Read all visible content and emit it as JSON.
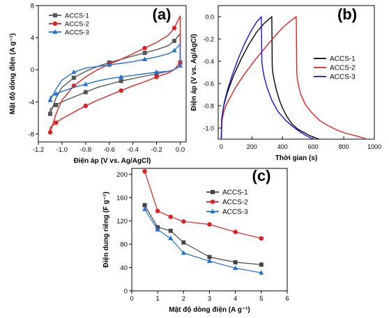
{
  "chart_data": [
    {
      "panel_label": "(a)",
      "type": "line",
      "title": "",
      "xlabel": "Điện áp (V vs. Ag/AgCl)",
      "ylabel": "Mật độ dòng điện (A g⁻¹)",
      "xlim": [
        -1.2,
        0.05
      ],
      "ylim": [
        -9,
        8
      ],
      "xticks": [
        "-1.2",
        "-1.0",
        "-0.8",
        "-0.6",
        "-0.4",
        "-0.2",
        "0.0"
      ],
      "yticks": [
        "-8",
        "-4",
        "0",
        "4",
        "8"
      ],
      "legend_position": "top-left",
      "series": [
        {
          "name": "ACCS-1",
          "color": "#555555",
          "marker": "square",
          "x": [
            -1.1,
            -1.05,
            -1.0,
            -0.9,
            -0.8,
            -0.7,
            -0.6,
            -0.5,
            -0.4,
            -0.3,
            -0.2,
            -0.1,
            -0.05,
            0.0,
            0.0,
            0.0,
            -0.05,
            -0.1,
            -0.2,
            -0.3,
            -0.4,
            -0.5,
            -0.6,
            -0.7,
            -0.8,
            -0.9,
            -1.0,
            -1.05,
            -1.1,
            -1.1
          ],
          "y": [
            -5.5,
            -3.5,
            -2.2,
            -1.0,
            -0.2,
            0.4,
            0.9,
            1.3,
            1.7,
            2.1,
            2.5,
            3.0,
            3.6,
            4.5,
            1.5,
            0.9,
            0.0,
            -0.2,
            -0.5,
            -0.8,
            -1.1,
            -1.4,
            -1.8,
            -2.2,
            -2.8,
            -3.4,
            -4.0,
            -4.4,
            -4.9,
            -5.5
          ]
        },
        {
          "name": "ACCS-2",
          "color": "#e02020",
          "marker": "circle",
          "x": [
            -1.1,
            -1.05,
            -1.0,
            -0.9,
            -0.8,
            -0.7,
            -0.6,
            -0.5,
            -0.4,
            -0.3,
            -0.2,
            -0.1,
            -0.05,
            0.0,
            0.0,
            0.0,
            -0.05,
            -0.1,
            -0.2,
            -0.3,
            -0.4,
            -0.5,
            -0.6,
            -0.7,
            -0.8,
            -0.9,
            -1.0,
            -1.05,
            -1.1,
            -1.1
          ],
          "y": [
            -7.8,
            -5.5,
            -3.8,
            -2.0,
            -0.9,
            0.0,
            0.7,
            1.3,
            2.0,
            2.7,
            3.4,
            4.3,
            5.2,
            6.7,
            1.5,
            0.9,
            0.0,
            -0.4,
            -0.9,
            -1.5,
            -2.0,
            -2.6,
            -3.2,
            -3.8,
            -4.5,
            -5.3,
            -6.1,
            -6.6,
            -7.2,
            -7.8
          ]
        },
        {
          "name": "ACCS-3",
          "color": "#1f6fd6",
          "marker": "triangle",
          "x": [
            -1.1,
            -1.05,
            -1.0,
            -0.9,
            -0.8,
            -0.7,
            -0.6,
            -0.5,
            -0.4,
            -0.3,
            -0.2,
            -0.1,
            -0.05,
            0.0,
            0.0,
            0.0,
            -0.05,
            -0.1,
            -0.2,
            -0.3,
            -0.4,
            -0.5,
            -0.6,
            -0.7,
            -0.8,
            -0.9,
            -1.0,
            -1.05,
            -1.1,
            -1.1
          ],
          "y": [
            -3.8,
            -2.4,
            -1.3,
            -0.3,
            0.2,
            0.4,
            0.6,
            0.8,
            1.0,
            1.3,
            1.6,
            2.0,
            2.4,
            3.2,
            1.3,
            0.5,
            0.0,
            -0.2,
            -0.3,
            -0.5,
            -0.7,
            -0.9,
            -1.1,
            -1.4,
            -1.8,
            -2.2,
            -2.7,
            -3.0,
            -3.4,
            -3.8
          ]
        }
      ]
    },
    {
      "panel_label": "(b)",
      "type": "line",
      "title": "",
      "xlabel": "Thời gian (s)",
      "ylabel": "Điện áp (V vs. Ag/AgCl)",
      "xlim": [
        -20,
        1000
      ],
      "ylim": [
        -1.1,
        0.1
      ],
      "xticks": [
        "0",
        "200",
        "400",
        "600",
        "800",
        "1000"
      ],
      "yticks": [
        "-1.0",
        "-0.8",
        "-0.6",
        "-0.4",
        "-0.2",
        "0.0"
      ],
      "legend_position": "center-right",
      "series": [
        {
          "name": "ACCS-1",
          "color": "#000000",
          "x": [
            0,
            3,
            10,
            20,
            40,
            80,
            130,
            180,
            230,
            280,
            330,
            333,
            336,
            345,
            360,
            380,
            400,
            430,
            460,
            500,
            540,
            580,
            620,
            640
          ],
          "y": [
            -1.1,
            -0.92,
            -0.85,
            -0.78,
            -0.68,
            -0.53,
            -0.38,
            -0.25,
            -0.14,
            -0.06,
            0.0,
            -0.45,
            -0.5,
            -0.57,
            -0.66,
            -0.75,
            -0.82,
            -0.9,
            -0.96,
            -1.01,
            -1.04,
            -1.07,
            -1.09,
            -1.1
          ]
        },
        {
          "name": "ACCS-2",
          "color": "#e02020",
          "x": [
            0,
            5,
            15,
            30,
            60,
            100,
            160,
            220,
            280,
            340,
            400,
            450,
            490,
            493,
            496,
            505,
            520,
            550,
            590,
            640,
            700,
            760,
            820,
            880,
            930,
            945
          ],
          "y": [
            -1.1,
            -0.93,
            -0.86,
            -0.8,
            -0.72,
            -0.62,
            -0.5,
            -0.39,
            -0.29,
            -0.19,
            -0.1,
            -0.04,
            0.0,
            -0.5,
            -0.55,
            -0.62,
            -0.7,
            -0.79,
            -0.86,
            -0.93,
            -0.98,
            -1.02,
            -1.05,
            -1.07,
            -1.09,
            -1.1
          ]
        },
        {
          "name": "ACCS-3",
          "color": "#1414d6",
          "x": [
            0,
            3,
            10,
            20,
            40,
            70,
            110,
            150,
            190,
            230,
            262,
            265,
            270,
            280,
            300,
            330,
            370,
            420,
            470,
            520,
            570,
            600
          ],
          "y": [
            -1.1,
            -0.92,
            -0.85,
            -0.77,
            -0.66,
            -0.53,
            -0.38,
            -0.25,
            -0.14,
            -0.05,
            0.0,
            -0.4,
            -0.46,
            -0.54,
            -0.64,
            -0.75,
            -0.85,
            -0.93,
            -0.99,
            -1.04,
            -1.08,
            -1.1
          ]
        }
      ]
    },
    {
      "panel_label": "(c)",
      "type": "line",
      "title": "",
      "xlabel": "Mật độ dòng điện (A g⁻¹)",
      "ylabel": "Điện dung riêng (F g⁻¹)",
      "xlim": [
        0,
        6
      ],
      "ylim": [
        0,
        210
      ],
      "xticks": [
        "0",
        "1",
        "2",
        "3",
        "4",
        "5",
        "6"
      ],
      "yticks": [
        "0",
        "40",
        "80",
        "120",
        "160",
        "200"
      ],
      "legend_position": "top-right",
      "series": [
        {
          "name": "ACCS-1",
          "color": "#444444",
          "marker": "square",
          "x": [
            0.5,
            1,
            1.5,
            2,
            3,
            4,
            5
          ],
          "y": [
            147,
            109,
            103,
            83,
            58,
            49,
            45
          ]
        },
        {
          "name": "ACCS-2",
          "color": "#e02020",
          "marker": "circle",
          "x": [
            0.5,
            1,
            1.5,
            2,
            3,
            4,
            5
          ],
          "y": [
            205,
            137,
            127,
            119,
            114,
            101,
            90
          ]
        },
        {
          "name": "ACCS-3",
          "color": "#1f6fd6",
          "marker": "triangle",
          "x": [
            0.5,
            1,
            1.5,
            2,
            3,
            4,
            5
          ],
          "y": [
            140,
            105,
            90,
            65,
            51,
            39,
            31
          ]
        }
      ]
    }
  ]
}
